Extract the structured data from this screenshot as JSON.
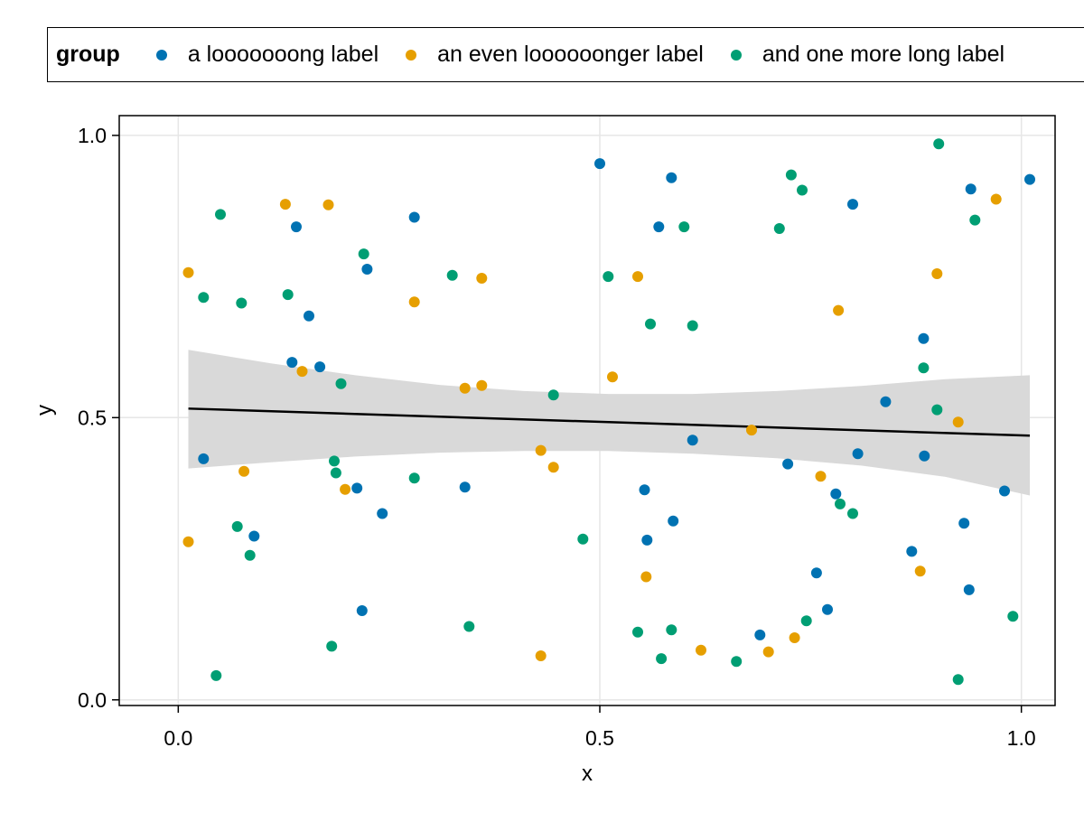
{
  "chart_data": {
    "type": "scatter",
    "title": "",
    "xlabel": "x",
    "ylabel": "y",
    "xlim": [
      -0.07,
      1.04
    ],
    "ylim": [
      -0.01,
      1.035
    ],
    "xticks": [
      0.0,
      0.5,
      1.0
    ],
    "yticks": [
      0.0,
      0.5,
      1.0
    ],
    "xtick_labels": [
      "0.0",
      "0.5",
      "1.0"
    ],
    "ytick_labels": [
      "0.0",
      "0.5",
      "1.0"
    ],
    "grid": true,
    "legend": {
      "title": "group",
      "placement": "top",
      "entries": [
        "a looooooong label",
        "an even loooooonger label",
        "and one more long label"
      ]
    },
    "series": [
      {
        "name": "a looooooong label",
        "color": "#0072b2",
        "points": [
          [
            0.03,
            0.427
          ],
          [
            0.09,
            0.29
          ],
          [
            0.135,
            0.598
          ],
          [
            0.14,
            0.838
          ],
          [
            0.155,
            0.68
          ],
          [
            0.168,
            0.59
          ],
          [
            0.212,
            0.375
          ],
          [
            0.218,
            0.158
          ],
          [
            0.224,
            0.763
          ],
          [
            0.242,
            0.33
          ],
          [
            0.28,
            0.855
          ],
          [
            0.34,
            0.377
          ],
          [
            0.5,
            0.95
          ],
          [
            0.553,
            0.372
          ],
          [
            0.556,
            0.283
          ],
          [
            0.57,
            0.838
          ],
          [
            0.585,
            0.925
          ],
          [
            0.587,
            0.317
          ],
          [
            0.61,
            0.46
          ],
          [
            0.69,
            0.115
          ],
          [
            0.723,
            0.418
          ],
          [
            0.757,
            0.225
          ],
          [
            0.77,
            0.16
          ],
          [
            0.78,
            0.365
          ],
          [
            0.8,
            0.878
          ],
          [
            0.806,
            0.436
          ],
          [
            0.839,
            0.528
          ],
          [
            0.87,
            0.263
          ],
          [
            0.884,
            0.64
          ],
          [
            0.885,
            0.432
          ],
          [
            0.932,
            0.313
          ],
          [
            0.938,
            0.195
          ],
          [
            0.94,
            0.905
          ],
          [
            0.98,
            0.37
          ],
          [
            1.01,
            0.922
          ]
        ]
      },
      {
        "name": "an even loooooonger label",
        "color": "#e69f00",
        "points": [
          [
            0.012,
            0.757
          ],
          [
            0.012,
            0.28
          ],
          [
            0.078,
            0.405
          ],
          [
            0.127,
            0.878
          ],
          [
            0.147,
            0.582
          ],
          [
            0.178,
            0.877
          ],
          [
            0.198,
            0.373
          ],
          [
            0.28,
            0.705
          ],
          [
            0.34,
            0.552
          ],
          [
            0.36,
            0.557
          ],
          [
            0.36,
            0.747
          ],
          [
            0.43,
            0.442
          ],
          [
            0.43,
            0.078
          ],
          [
            0.445,
            0.412
          ],
          [
            0.515,
            0.572
          ],
          [
            0.545,
            0.75
          ],
          [
            0.555,
            0.218
          ],
          [
            0.62,
            0.088
          ],
          [
            0.68,
            0.478
          ],
          [
            0.7,
            0.085
          ],
          [
            0.731,
            0.11
          ],
          [
            0.762,
            0.396
          ],
          [
            0.783,
            0.69
          ],
          [
            0.88,
            0.228
          ],
          [
            0.9,
            0.755
          ],
          [
            0.925,
            0.492
          ],
          [
            0.97,
            0.887
          ]
        ]
      },
      {
        "name": "and one more long label",
        "color": "#009e73",
        "points": [
          [
            0.03,
            0.713
          ],
          [
            0.045,
            0.043
          ],
          [
            0.05,
            0.86
          ],
          [
            0.07,
            0.307
          ],
          [
            0.075,
            0.703
          ],
          [
            0.085,
            0.256
          ],
          [
            0.13,
            0.718
          ],
          [
            0.182,
            0.095
          ],
          [
            0.185,
            0.423
          ],
          [
            0.187,
            0.402
          ],
          [
            0.193,
            0.56
          ],
          [
            0.22,
            0.79
          ],
          [
            0.28,
            0.393
          ],
          [
            0.325,
            0.752
          ],
          [
            0.345,
            0.13
          ],
          [
            0.445,
            0.54
          ],
          [
            0.48,
            0.285
          ],
          [
            0.51,
            0.75
          ],
          [
            0.545,
            0.12
          ],
          [
            0.56,
            0.666
          ],
          [
            0.573,
            0.073
          ],
          [
            0.585,
            0.124
          ],
          [
            0.6,
            0.838
          ],
          [
            0.61,
            0.663
          ],
          [
            0.662,
            0.068
          ],
          [
            0.713,
            0.835
          ],
          [
            0.727,
            0.93
          ],
          [
            0.74,
            0.903
          ],
          [
            0.745,
            0.14
          ],
          [
            0.785,
            0.347
          ],
          [
            0.8,
            0.33
          ],
          [
            0.884,
            0.588
          ],
          [
            0.9,
            0.514
          ],
          [
            0.902,
            0.985
          ],
          [
            0.925,
            0.036
          ],
          [
            0.945,
            0.85
          ],
          [
            0.99,
            0.148
          ]
        ]
      }
    ],
    "fit_line": {
      "color": "#000000",
      "x": [
        0.012,
        1.01
      ],
      "y": [
        0.516,
        0.468
      ]
    },
    "confidence_band": {
      "color": "#d9d9d9",
      "x": [
        0.012,
        0.11,
        0.21,
        0.31,
        0.41,
        0.51,
        0.61,
        0.71,
        0.81,
        0.91,
        1.01
      ],
      "upper": [
        0.62,
        0.596,
        0.575,
        0.558,
        0.547,
        0.542,
        0.542,
        0.547,
        0.556,
        0.568,
        0.575
      ],
      "lower": [
        0.41,
        0.421,
        0.431,
        0.438,
        0.441,
        0.441,
        0.436,
        0.428,
        0.415,
        0.395,
        0.362
      ]
    }
  }
}
